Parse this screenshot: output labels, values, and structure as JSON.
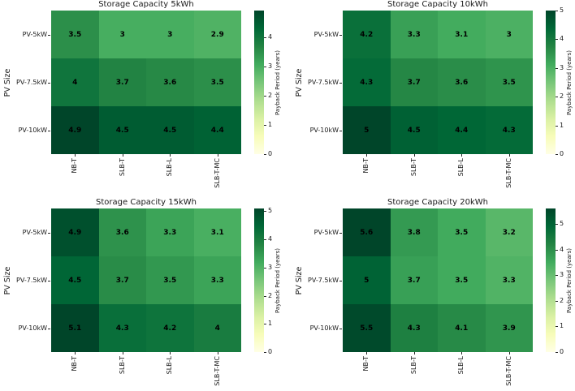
{
  "figure": {
    "background": "#ffffff",
    "text_color": "#1a1a1a",
    "annotation_color": "#000000",
    "colormap": {
      "name": "YlGn",
      "anchors": [
        "#ffffe5",
        "#f7fcb9",
        "#d9f0a3",
        "#addd8e",
        "#78c679",
        "#41ab5d",
        "#238443",
        "#006837",
        "#004529"
      ]
    }
  },
  "chart_data": [
    {
      "type": "heatmap",
      "title": "Storage Capacity 5kWh",
      "ylabel": "PV Size",
      "colorbar_label": "Payback Period (years)",
      "rows": [
        "PV-5kW",
        "PV-7.5kW",
        "PV-10kW"
      ],
      "columns": [
        "NB-T",
        "SLB-T",
        "SLB-L",
        "SLB-T-MC"
      ],
      "values": [
        [
          3.5,
          3,
          3,
          2.9
        ],
        [
          4,
          3.7,
          3.6,
          3.5
        ],
        [
          4.9,
          4.5,
          4.5,
          4.4
        ]
      ],
      "vmin": 0,
      "vmax": 4.9,
      "colorbar_ticks": [
        0,
        1,
        2,
        3,
        4
      ],
      "legend_position": "right",
      "xlabel_rotation": 90
    },
    {
      "type": "heatmap",
      "title": "Storage Capacity 10kWh",
      "ylabel": "PV Size",
      "colorbar_label": "Payback Period (years)",
      "rows": [
        "PV-5kW",
        "PV-7.5kW",
        "PV-10kW"
      ],
      "columns": [
        "NB-T",
        "SLB-T",
        "SLB-L",
        "SLB-T-MC"
      ],
      "values": [
        [
          4.2,
          3.3,
          3.1,
          3
        ],
        [
          4.3,
          3.7,
          3.6,
          3.5
        ],
        [
          5,
          4.5,
          4.4,
          4.3
        ]
      ],
      "vmin": 0,
      "vmax": 5,
      "colorbar_ticks": [
        0,
        1,
        2,
        3,
        4,
        5
      ],
      "legend_position": "right",
      "xlabel_rotation": 90
    },
    {
      "type": "heatmap",
      "title": "Storage Capacity 15kWh",
      "ylabel": "PV Size",
      "colorbar_label": "Payback Period (years)",
      "rows": [
        "PV-5kW",
        "PV-7.5kW",
        "PV-10kW"
      ],
      "columns": [
        "NB-T",
        "SLB-T",
        "SLB-L",
        "SLB-T-MC"
      ],
      "values": [
        [
          4.9,
          3.6,
          3.3,
          3.1
        ],
        [
          4.5,
          3.7,
          3.5,
          3.3
        ],
        [
          5.1,
          4.3,
          4.2,
          4
        ]
      ],
      "vmin": 0,
      "vmax": 5.1,
      "colorbar_ticks": [
        0,
        1,
        2,
        3,
        4,
        5
      ],
      "legend_position": "right",
      "xlabel_rotation": 90
    },
    {
      "type": "heatmap",
      "title": "Storage Capacity 20kWh",
      "ylabel": "PV Size",
      "colorbar_label": "Payback Period (years)",
      "rows": [
        "PV-5kW",
        "PV-7.5kW",
        "PV-10kW"
      ],
      "columns": [
        "NB-T",
        "SLB-T",
        "SLB-L",
        "SLB-T-MC"
      ],
      "values": [
        [
          5.6,
          3.8,
          3.5,
          3.2
        ],
        [
          5,
          3.7,
          3.5,
          3.3
        ],
        [
          5.5,
          4.3,
          4.1,
          3.9
        ]
      ],
      "vmin": 0,
      "vmax": 5.6,
      "colorbar_ticks": [
        0,
        1,
        2,
        3,
        4,
        5
      ],
      "legend_position": "right",
      "xlabel_rotation": 90
    }
  ]
}
